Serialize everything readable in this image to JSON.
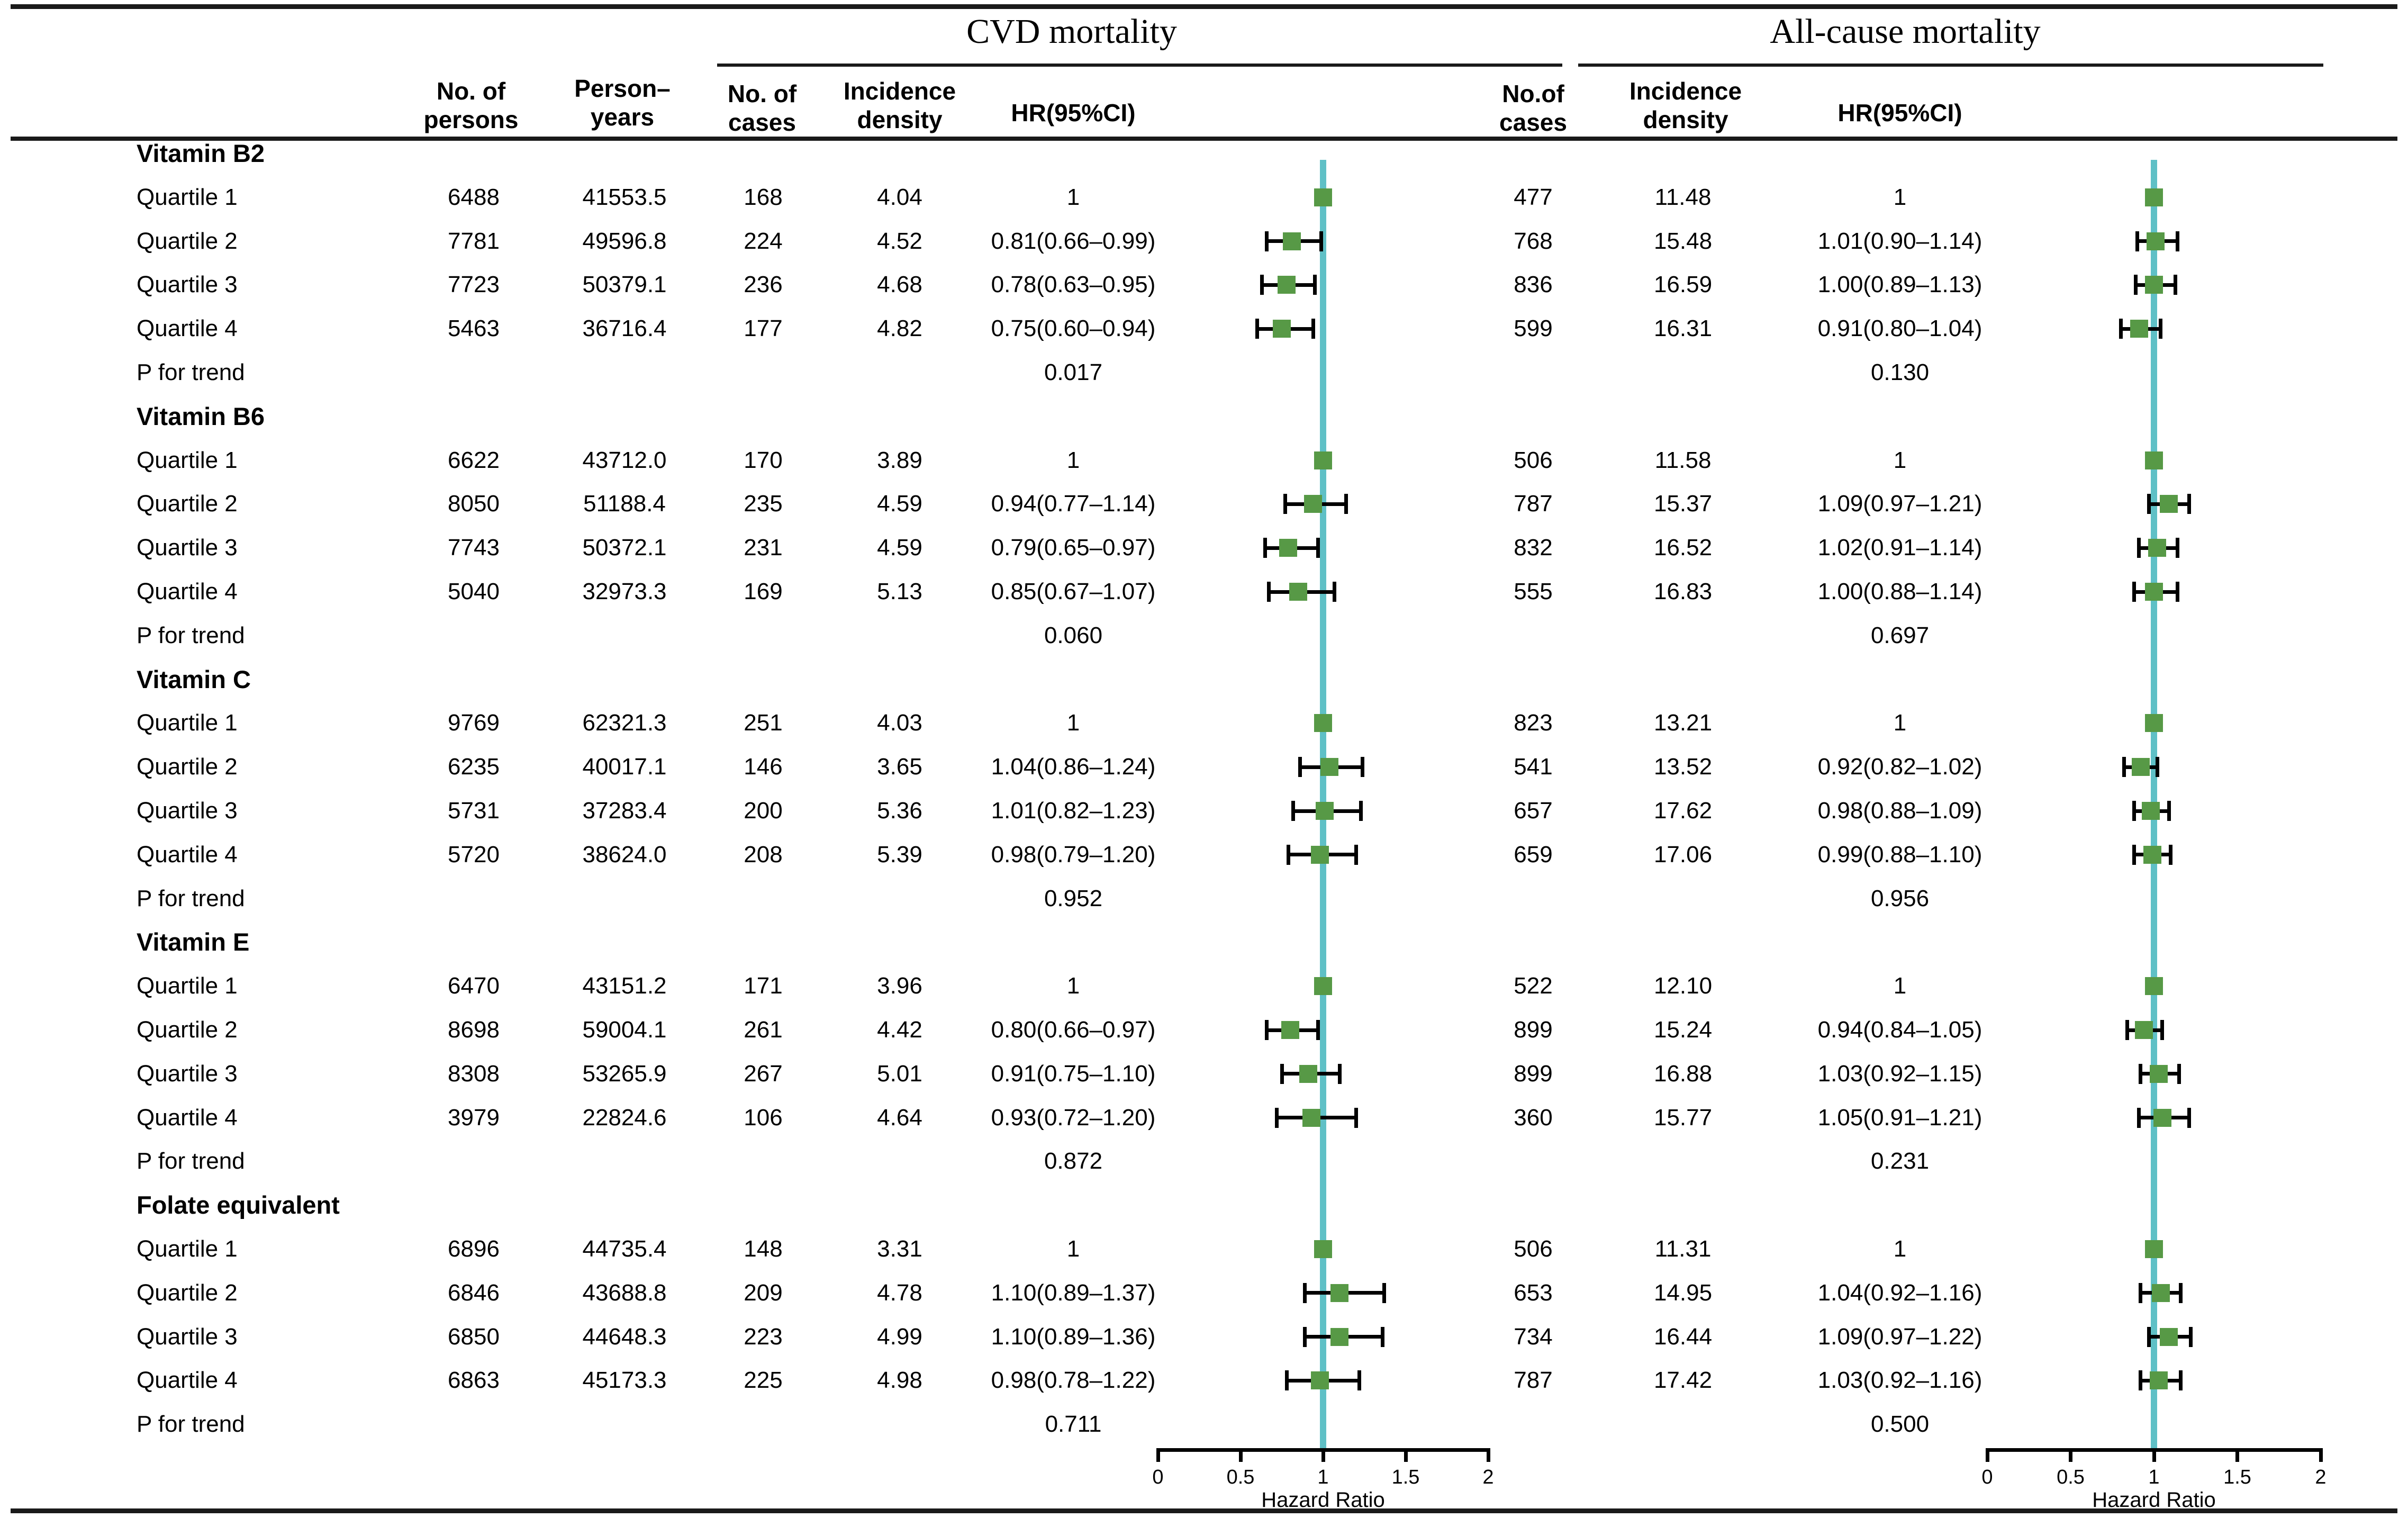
{
  "titles": {
    "cvd": "CVD mortality",
    "all_cause": "All-cause mortality"
  },
  "columns": {
    "persons": "No. of\npersons",
    "person_years": "Person–\nyears",
    "cases_cvd": "No. of\ncases",
    "incidence_cvd": "Incidence\ndensity",
    "hr": "HR(95%CI)",
    "cases_ac": "No.of\ncases",
    "incidence_ac": "Incidence\ndensity"
  },
  "axis": {
    "min": 0,
    "max": 2,
    "ticks": [
      "0",
      "0.5",
      "1",
      "1.5",
      "2"
    ],
    "label": "Hazard Ratio"
  },
  "colors": {
    "marker": "#579946",
    "refline": "#5fc0c6",
    "line": "#1a1a1a"
  },
  "chart_data": {
    "type": "scatter",
    "subtype": "forest-plot",
    "outcomes": [
      "CVD mortality",
      "All-cause mortality"
    ],
    "xlabel": "Hazard Ratio",
    "xlim": [
      0,
      2
    ],
    "x_ticks": [
      0,
      0.5,
      1,
      1.5,
      2
    ],
    "reference_line": 1,
    "sections": [
      {
        "name": "Vitamin B2",
        "rows": [
          {
            "label": "Quartile 1",
            "persons": "6488",
            "person_years": "41553.5",
            "cvd": {
              "cases": "168",
              "incidence": "4.04",
              "hr_text": "1",
              "hr": 1,
              "lo": null,
              "hi": null
            },
            "all_cause": {
              "cases": "477",
              "incidence": "11.48",
              "hr_text": "1",
              "hr": 1,
              "lo": null,
              "hi": null
            }
          },
          {
            "label": "Quartile 2",
            "persons": "7781",
            "person_years": "49596.8",
            "cvd": {
              "cases": "224",
              "incidence": "4.52",
              "hr_text": "0.81(0.66–0.99)",
              "hr": 0.81,
              "lo": 0.66,
              "hi": 0.99
            },
            "all_cause": {
              "cases": "768",
              "incidence": "15.48",
              "hr_text": "1.01(0.90–1.14)",
              "hr": 1.01,
              "lo": 0.9,
              "hi": 1.14
            }
          },
          {
            "label": "Quartile 3",
            "persons": "7723",
            "person_years": "50379.1",
            "cvd": {
              "cases": "236",
              "incidence": "4.68",
              "hr_text": "0.78(0.63–0.95)",
              "hr": 0.78,
              "lo": 0.63,
              "hi": 0.95
            },
            "all_cause": {
              "cases": "836",
              "incidence": "16.59",
              "hr_text": "1.00(0.89–1.13)",
              "hr": 1.0,
              "lo": 0.89,
              "hi": 1.13
            }
          },
          {
            "label": "Quartile 4",
            "persons": "5463",
            "person_years": "36716.4",
            "cvd": {
              "cases": "177",
              "incidence": "4.82",
              "hr_text": "0.75(0.60–0.94)",
              "hr": 0.75,
              "lo": 0.6,
              "hi": 0.94
            },
            "all_cause": {
              "cases": "599",
              "incidence": "16.31",
              "hr_text": "0.91(0.80–1.04)",
              "hr": 0.91,
              "lo": 0.8,
              "hi": 1.04
            }
          }
        ],
        "p_for_trend": {
          "label": "P for trend",
          "cvd": "0.017",
          "all_cause": "0.130"
        }
      },
      {
        "name": "Vitamin B6",
        "rows": [
          {
            "label": "Quartile 1",
            "persons": "6622",
            "person_years": "43712.0",
            "cvd": {
              "cases": "170",
              "incidence": "3.89",
              "hr_text": "1",
              "hr": 1,
              "lo": null,
              "hi": null
            },
            "all_cause": {
              "cases": "506",
              "incidence": "11.58",
              "hr_text": "1",
              "hr": 1,
              "lo": null,
              "hi": null
            }
          },
          {
            "label": "Quartile 2",
            "persons": "8050",
            "person_years": "51188.4",
            "cvd": {
              "cases": "235",
              "incidence": "4.59",
              "hr_text": "0.94(0.77–1.14)",
              "hr": 0.94,
              "lo": 0.77,
              "hi": 1.14
            },
            "all_cause": {
              "cases": "787",
              "incidence": "15.37",
              "hr_text": "1.09(0.97–1.21)",
              "hr": 1.09,
              "lo": 0.97,
              "hi": 1.21
            }
          },
          {
            "label": "Quartile 3",
            "persons": "7743",
            "person_years": "50372.1",
            "cvd": {
              "cases": "231",
              "incidence": "4.59",
              "hr_text": "0.79(0.65–0.97)",
              "hr": 0.79,
              "lo": 0.65,
              "hi": 0.97
            },
            "all_cause": {
              "cases": "832",
              "incidence": "16.52",
              "hr_text": "1.02(0.91–1.14)",
              "hr": 1.02,
              "lo": 0.91,
              "hi": 1.14
            }
          },
          {
            "label": "Quartile 4",
            "persons": "5040",
            "person_years": "32973.3",
            "cvd": {
              "cases": "169",
              "incidence": "5.13",
              "hr_text": "0.85(0.67–1.07)",
              "hr": 0.85,
              "lo": 0.67,
              "hi": 1.07
            },
            "all_cause": {
              "cases": "555",
              "incidence": "16.83",
              "hr_text": "1.00(0.88–1.14)",
              "hr": 1.0,
              "lo": 0.88,
              "hi": 1.14
            }
          }
        ],
        "p_for_trend": {
          "label": "P for trend",
          "cvd": "0.060",
          "all_cause": "0.697"
        }
      },
      {
        "name": "Vitamin C",
        "rows": [
          {
            "label": "Quartile 1",
            "persons": "9769",
            "person_years": "62321.3",
            "cvd": {
              "cases": "251",
              "incidence": "4.03",
              "hr_text": "1",
              "hr": 1,
              "lo": null,
              "hi": null
            },
            "all_cause": {
              "cases": "823",
              "incidence": "13.21",
              "hr_text": "1",
              "hr": 1,
              "lo": null,
              "hi": null
            }
          },
          {
            "label": "Quartile 2",
            "persons": "6235",
            "person_years": "40017.1",
            "cvd": {
              "cases": "146",
              "incidence": "3.65",
              "hr_text": "1.04(0.86–1.24)",
              "hr": 1.04,
              "lo": 0.86,
              "hi": 1.24
            },
            "all_cause": {
              "cases": "541",
              "incidence": "13.52",
              "hr_text": "0.92(0.82–1.02)",
              "hr": 0.92,
              "lo": 0.82,
              "hi": 1.02
            }
          },
          {
            "label": "Quartile 3",
            "persons": "5731",
            "person_years": "37283.4",
            "cvd": {
              "cases": "200",
              "incidence": "5.36",
              "hr_text": "1.01(0.82–1.23)",
              "hr": 1.01,
              "lo": 0.82,
              "hi": 1.23
            },
            "all_cause": {
              "cases": "657",
              "incidence": "17.62",
              "hr_text": "0.98(0.88–1.09)",
              "hr": 0.98,
              "lo": 0.88,
              "hi": 1.09
            }
          },
          {
            "label": "Quartile 4",
            "persons": "5720",
            "person_years": "38624.0",
            "cvd": {
              "cases": "208",
              "incidence": "5.39",
              "hr_text": "0.98(0.79–1.20)",
              "hr": 0.98,
              "lo": 0.79,
              "hi": 1.2
            },
            "all_cause": {
              "cases": "659",
              "incidence": "17.06",
              "hr_text": "0.99(0.88–1.10)",
              "hr": 0.99,
              "lo": 0.88,
              "hi": 1.1
            }
          }
        ],
        "p_for_trend": {
          "label": "P for trend",
          "cvd": "0.952",
          "all_cause": "0.956"
        }
      },
      {
        "name": "Vitamin E",
        "rows": [
          {
            "label": "Quartile 1",
            "persons": "6470",
            "person_years": "43151.2",
            "cvd": {
              "cases": "171",
              "incidence": "3.96",
              "hr_text": "1",
              "hr": 1,
              "lo": null,
              "hi": null
            },
            "all_cause": {
              "cases": "522",
              "incidence": "12.10",
              "hr_text": "1",
              "hr": 1,
              "lo": null,
              "hi": null
            }
          },
          {
            "label": "Quartile 2",
            "persons": "8698",
            "person_years": "59004.1",
            "cvd": {
              "cases": "261",
              "incidence": "4.42",
              "hr_text": "0.80(0.66–0.97)",
              "hr": 0.8,
              "lo": 0.66,
              "hi": 0.97
            },
            "all_cause": {
              "cases": "899",
              "incidence": "15.24",
              "hr_text": "0.94(0.84–1.05)",
              "hr": 0.94,
              "lo": 0.84,
              "hi": 1.05
            }
          },
          {
            "label": "Quartile 3",
            "persons": "8308",
            "person_years": "53265.9",
            "cvd": {
              "cases": "267",
              "incidence": "5.01",
              "hr_text": "0.91(0.75–1.10)",
              "hr": 0.91,
              "lo": 0.75,
              "hi": 1.1
            },
            "all_cause": {
              "cases": "899",
              "incidence": "16.88",
              "hr_text": "1.03(0.92–1.15)",
              "hr": 1.03,
              "lo": 0.92,
              "hi": 1.15
            }
          },
          {
            "label": "Quartile 4",
            "persons": "3979",
            "person_years": "22824.6",
            "cvd": {
              "cases": "106",
              "incidence": "4.64",
              "hr_text": "0.93(0.72–1.20)",
              "hr": 0.93,
              "lo": 0.72,
              "hi": 1.2
            },
            "all_cause": {
              "cases": "360",
              "incidence": "15.77",
              "hr_text": "1.05(0.91–1.21)",
              "hr": 1.05,
              "lo": 0.91,
              "hi": 1.21
            }
          }
        ],
        "p_for_trend": {
          "label": "P for trend",
          "cvd": "0.872",
          "all_cause": "0.231"
        }
      },
      {
        "name": "Folate equivalent",
        "rows": [
          {
            "label": "Quartile 1",
            "persons": "6896",
            "person_years": "44735.4",
            "cvd": {
              "cases": "148",
              "incidence": "3.31",
              "hr_text": "1",
              "hr": 1,
              "lo": null,
              "hi": null
            },
            "all_cause": {
              "cases": "506",
              "incidence": "11.31",
              "hr_text": "1",
              "hr": 1,
              "lo": null,
              "hi": null
            }
          },
          {
            "label": "Quartile 2",
            "persons": "6846",
            "person_years": "43688.8",
            "cvd": {
              "cases": "209",
              "incidence": "4.78",
              "hr_text": "1.10(0.89–1.37)",
              "hr": 1.1,
              "lo": 0.89,
              "hi": 1.37
            },
            "all_cause": {
              "cases": "653",
              "incidence": "14.95",
              "hr_text": "1.04(0.92–1.16)",
              "hr": 1.04,
              "lo": 0.92,
              "hi": 1.16
            }
          },
          {
            "label": "Quartile 3",
            "persons": "6850",
            "person_years": "44648.3",
            "cvd": {
              "cases": "223",
              "incidence": "4.99",
              "hr_text": "1.10(0.89–1.36)",
              "hr": 1.1,
              "lo": 0.89,
              "hi": 1.36
            },
            "all_cause": {
              "cases": "734",
              "incidence": "16.44",
              "hr_text": "1.09(0.97–1.22)",
              "hr": 1.09,
              "lo": 0.97,
              "hi": 1.22
            }
          },
          {
            "label": "Quartile 4",
            "persons": "6863",
            "person_years": "45173.3",
            "cvd": {
              "cases": "225",
              "incidence": "4.98",
              "hr_text": "0.98(0.78–1.22)",
              "hr": 0.98,
              "lo": 0.78,
              "hi": 1.22
            },
            "all_cause": {
              "cases": "787",
              "incidence": "17.42",
              "hr_text": "1.03(0.92–1.16)",
              "hr": 1.03,
              "lo": 0.92,
              "hi": 1.16
            }
          }
        ],
        "p_for_trend": {
          "label": "P for trend",
          "cvd": "0.711",
          "all_cause": "0.500"
        }
      }
    ]
  }
}
